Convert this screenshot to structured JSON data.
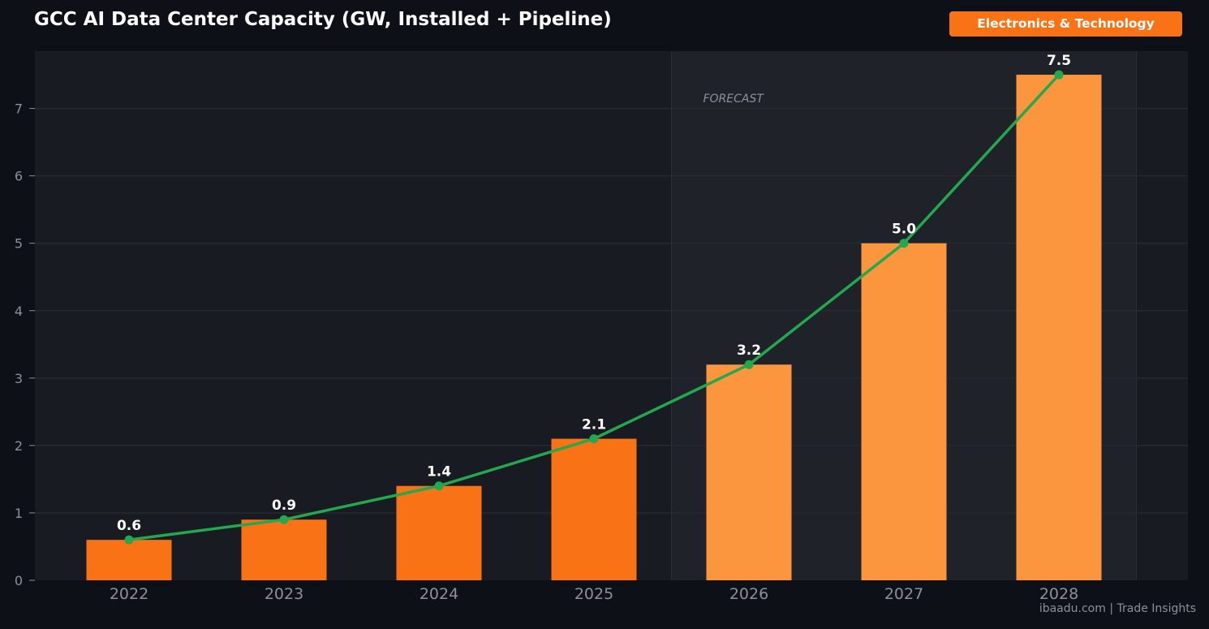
{
  "header": {
    "title": "GCC AI Data Center Capacity (GW, Installed + Pipeline)",
    "badge": "Electronics & Technology"
  },
  "footer": {
    "watermark": "ibaadu.com | Trade Insights"
  },
  "chart_data": {
    "type": "bar",
    "title": "GCC AI Data Center Capacity (GW, Installed + Pipeline)",
    "xlabel": "",
    "ylabel": "",
    "categories": [
      "2022",
      "2023",
      "2024",
      "2025",
      "2026",
      "2027",
      "2028"
    ],
    "values": [
      0.6,
      0.9,
      1.4,
      2.1,
      3.2,
      5.0,
      7.5
    ],
    "value_labels": [
      "0.6",
      "0.9",
      "1.4",
      "2.1",
      "3.2",
      "5.0",
      "7.5"
    ],
    "overlay_line": {
      "type": "line",
      "values": [
        0.6,
        0.9,
        1.4,
        2.1,
        3.2,
        5.0,
        7.5
      ],
      "color": "#22a94f",
      "markers": true
    },
    "forecast": {
      "label": "FORECAST",
      "start_category": "2026",
      "end_category": "2028"
    },
    "ylim": [
      0,
      7.85
    ],
    "yticks": [
      0,
      1,
      2,
      3,
      4,
      5,
      6,
      7
    ],
    "grid": true,
    "colors": {
      "actual_bar": "#f97316",
      "forecast_bar": "#fb953e",
      "line": "#22a94f",
      "background": "#0d1017",
      "plot_background": "#181b21",
      "forecast_band": "#1f2228",
      "grid": "#262a31",
      "tick_text": "#8b9099",
      "label_text": "#ffffff"
    }
  }
}
